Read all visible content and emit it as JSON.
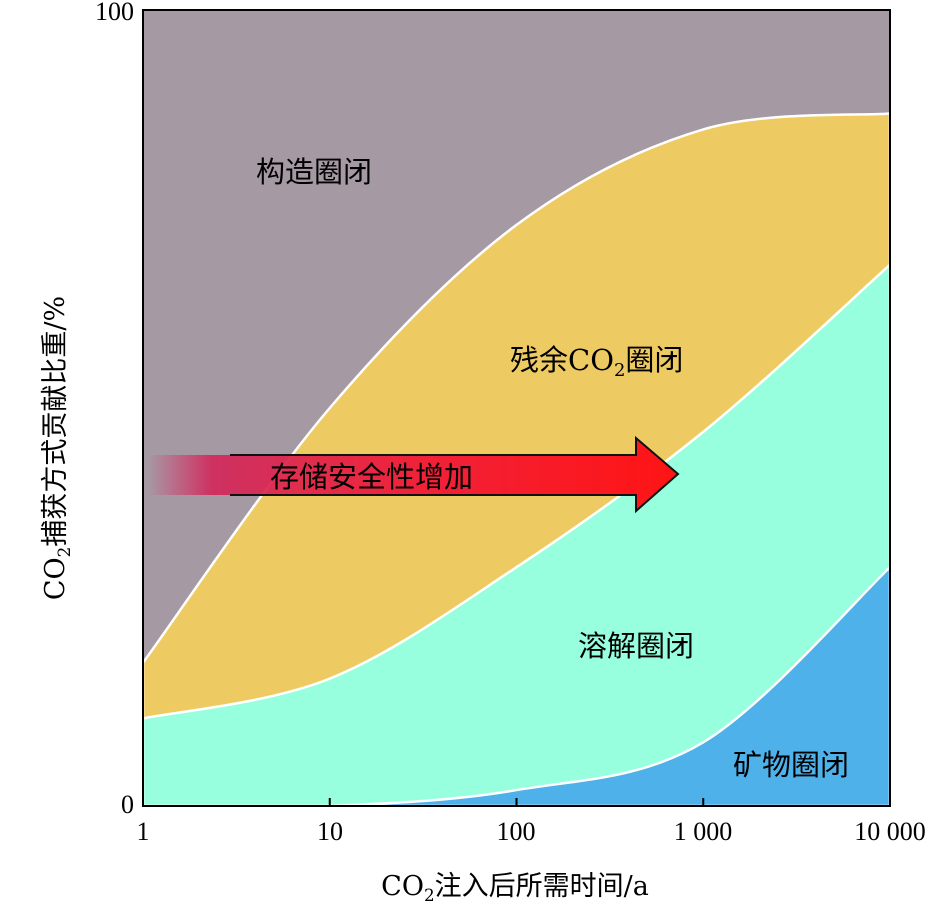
{
  "chart_data": {
    "type": "area",
    "x_scale": "log",
    "xlim": [
      1,
      10000
    ],
    "ylim": [
      0,
      100
    ],
    "x_ticks": [
      1,
      10,
      100,
      1000,
      10000
    ],
    "x_tick_labels": [
      "1",
      "10",
      "100",
      "1 000",
      "10 000"
    ],
    "y_ticks": [
      0,
      100
    ],
    "y_tick_labels": [
      "0",
      "100"
    ],
    "xlabel": {
      "prefix": "CO",
      "sub": "2",
      "suffix": "注入后所需时间/a"
    },
    "ylabel": {
      "prefix": "CO",
      "sub": "2",
      "suffix": "捕获方式贡献比重/%"
    },
    "grid": false,
    "series": [
      {
        "name": "矿物圈闭",
        "color": "#4eb1ea",
        "x": [
          1,
          10,
          100,
          1000,
          10000
        ],
        "upper": [
          0,
          0,
          2,
          8,
          30
        ]
      },
      {
        "name": "溶解圈闭",
        "color": "#97ffdd",
        "x": [
          1,
          10,
          100,
          1000,
          10000
        ],
        "upper": [
          11,
          16,
          30,
          47,
          68
        ]
      },
      {
        "name": "残余CO2圈闭",
        "color": "#eecb62",
        "x": [
          1,
          10,
          100,
          1000,
          10000
        ],
        "upper": [
          18,
          50,
          73,
          85,
          87
        ]
      },
      {
        "name": "构造圈闭",
        "color": "#a599a4",
        "x": [
          1,
          10,
          100,
          1000,
          10000
        ],
        "upper": [
          100,
          100,
          100,
          100,
          100
        ]
      }
    ],
    "region_labels": {
      "mineral": "矿物圈闭",
      "dissolution": "溶解圈闭",
      "residual_prefix": "残余CO",
      "residual_sub": "2",
      "residual_suffix": "圈闭",
      "structural": "构造圈闭"
    },
    "annotation": {
      "text": "存储安全性增加",
      "direction": "increasing time"
    }
  }
}
